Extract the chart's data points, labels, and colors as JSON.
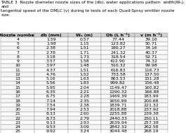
{
  "title_line1": "TABLE 3  Nozzle diameter nozzle sizes of the (db), water applications pattern  width(Wₙ), and",
  "title_line2": "tangential speed of the DMLC (v) during te tests of each Quad-Spray emitter nozzle",
  "title_line3": "size.",
  "headers": [
    "Nozzle number",
    "db (mm)",
    "Wₙ (m)",
    "Qb (L h⁻¹)",
    "v (m h⁻¹)"
  ],
  "rows": [
    [
      4,
      1.59,
      0.57,
      77.44,
      39.16
    ],
    [
      5,
      1.98,
      1.15,
      123.82,
      50.71
    ],
    [
      6,
      2.38,
      1.51,
      180.27,
      34.16
    ],
    [
      7,
      2.78,
      1.71,
      241.32,
      40.37
    ],
    [
      8,
      3.18,
      1.73,
      318.54,
      52.71
    ],
    [
      9,
      3.57,
      1.58,
      412.9,
      74.32
    ],
    [
      10,
      3.97,
      1.48,
      510.32,
      99.98
    ],
    [
      11,
      4.37,
      1.51,
      616.83,
      116.73
    ],
    [
      12,
      4.76,
      1.52,
      733.58,
      137.5
    ],
    [
      13,
      5.16,
      1.63,
      863.53,
      151.28
    ],
    [
      14,
      5.56,
      1.83,
      999.82,
      156.48
    ],
    [
      15,
      5.95,
      2.04,
      1149.47,
      160.82
    ],
    [
      16,
      6.35,
      2.21,
      1290.32,
      166.88
    ],
    [
      17,
      6.75,
      2.28,
      1469.39,
      183.99
    ],
    [
      18,
      7.14,
      2.35,
      1650.99,
      200.68
    ],
    [
      19,
      7.54,
      2.38,
      1839.71,
      221.32
    ],
    [
      20,
      7.94,
      2.53,
      2018.88,
      237.92
    ],
    [
      21,
      8.33,
      2.6,
      2255.88,
      239.38
    ],
    [
      22,
      8.73,
      2.79,
      2440.33,
      250.11
    ],
    [
      23,
      9.13,
      2.93,
      2639.94,
      257.38
    ],
    [
      24,
      9.53,
      3.09,
      2842.32,
      262.58
    ],
    [
      25,
      9.92,
      3.24,
      3044.48,
      268.19
    ]
  ],
  "bg_color": "#ffffff",
  "header_bg": "#d0d0d0",
  "row_colors": [
    "#f5f5f5",
    "#ffffff"
  ],
  "font_size": 4.5,
  "title_font_size": 4.2
}
